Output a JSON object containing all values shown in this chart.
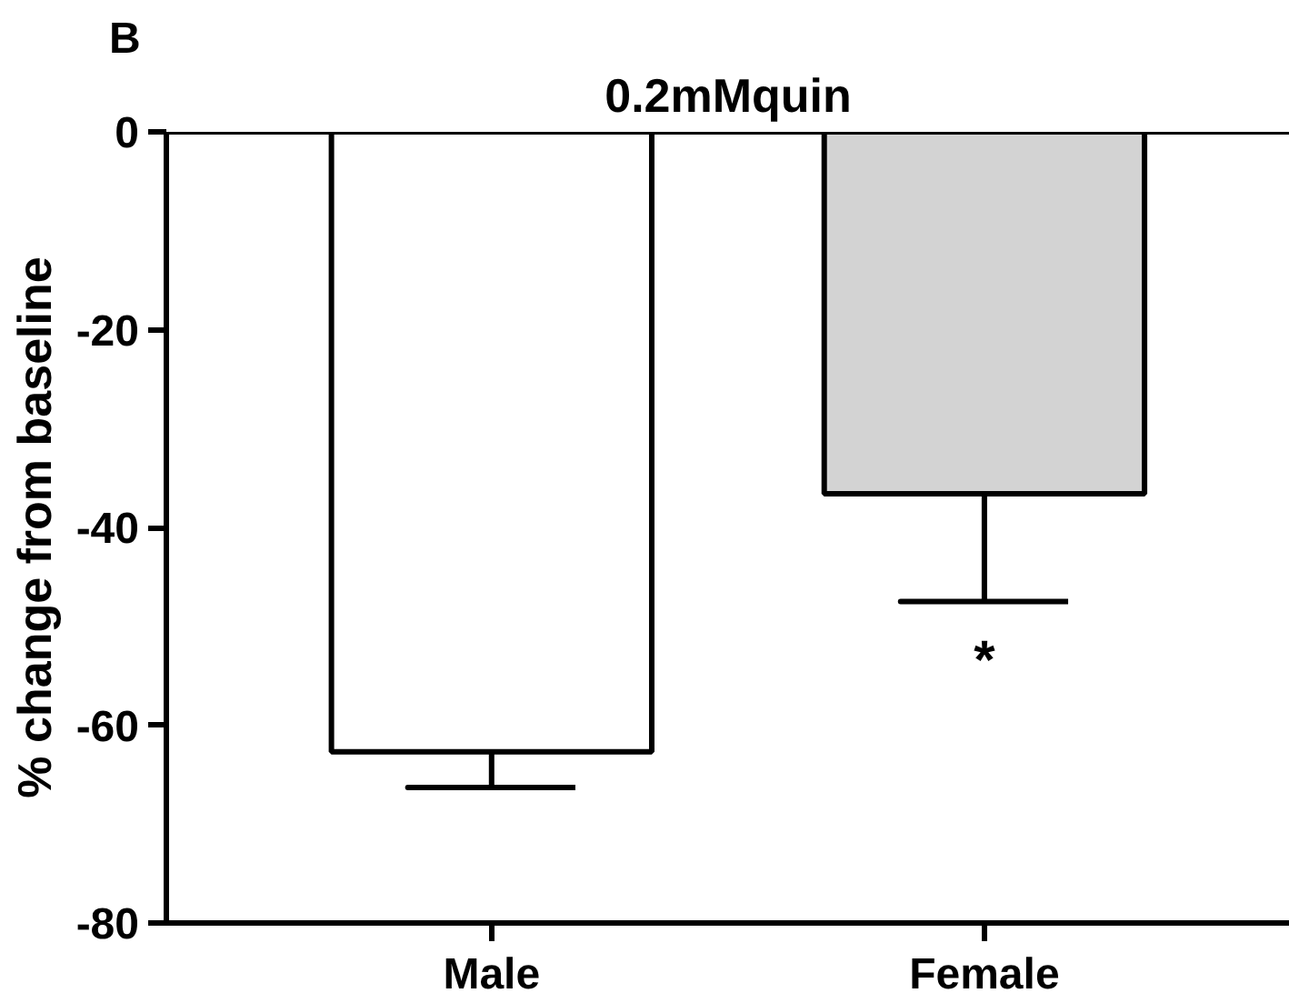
{
  "chart_data": {
    "type": "bar",
    "title": "0.2mMquin",
    "ylabel": "% change from baseline",
    "categories": [
      "Male",
      "Female"
    ],
    "values": [
      -62.7,
      -36.6
    ],
    "colors": [
      "#ffffff",
      "#d3d3d3"
    ],
    "errors": [
      [
        -66.3,
        -62.7
      ],
      [
        -47.5,
        -36.6
      ]
    ],
    "ylim": [
      -80,
      0
    ],
    "yticks": [
      0,
      -20,
      -40,
      -60,
      -80
    ],
    "ref_lines": [
      {
        "axis": "y",
        "value": 0
      }
    ],
    "annotations": [
      "B",
      "*"
    ],
    "grid": false
  }
}
